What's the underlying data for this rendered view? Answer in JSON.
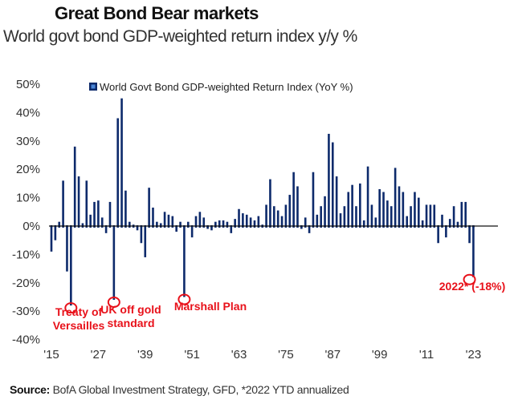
{
  "header": {
    "title": "Great Bond Bear markets",
    "subtitle": "World govt bond GDP-weighted return index y/y %"
  },
  "footer": {
    "source_label": "Source:",
    "source_text": "BofA Global Investment Strategy, GFD, *2022 YTD annualized"
  },
  "colors": {
    "bar": "#0d2a6b",
    "annotation": "#e8111a",
    "legend_inner": "#4a86d8"
  },
  "chart_data": {
    "type": "bar",
    "title": "Great Bond Bear markets",
    "subtitle": "World govt bond GDP-weighted return index y/y %",
    "xlabel": "",
    "ylabel": "",
    "ylim": [
      -40,
      50
    ],
    "yticks": [
      50,
      40,
      30,
      20,
      10,
      0,
      -10,
      -20,
      -30,
      -40
    ],
    "ytick_labels": [
      "50%",
      "40%",
      "30%",
      "20%",
      "10%",
      "0%",
      "-10%",
      "-20%",
      "-30%",
      "-40%"
    ],
    "xtick_years": [
      1915,
      1927,
      1939,
      1951,
      1963,
      1975,
      1987,
      1999,
      2011,
      2023
    ],
    "xtick_labels": [
      "'15",
      "'27",
      "'39",
      "'51",
      "'63",
      "'75",
      "'87",
      "'99",
      "'11",
      "'23"
    ],
    "grid": false,
    "legend": {
      "position": "top",
      "entries": [
        "World Govt Bond GDP-weighted Return Index (YoY %)"
      ]
    },
    "series": [
      {
        "name": "World Govt Bond GDP-weighted Return Index (YoY %)",
        "start_year": 1915,
        "values": [
          -9,
          -5,
          1.5,
          16,
          -16,
          -28,
          28,
          17.5,
          1,
          16,
          4,
          8.5,
          9,
          3,
          -2.5,
          8.5,
          -26,
          38,
          45,
          12.5,
          1.5,
          0.5,
          -1.5,
          -6,
          -11,
          13.5,
          6.5,
          1.5,
          1,
          5,
          4,
          3.5,
          -2,
          1.5,
          -25,
          1.5,
          -4,
          3.5,
          5,
          3,
          -1,
          -1.5,
          1.5,
          2,
          2,
          1.5,
          -2.5,
          2.5,
          6,
          4.5,
          4,
          3,
          2,
          3.5,
          0.5,
          7.5,
          16.5,
          7,
          5.5,
          3.5,
          7.5,
          11,
          19,
          14,
          -1,
          3,
          -2.5,
          19,
          4,
          7,
          10.5,
          32.5,
          29.5,
          17.5,
          4.5,
          7,
          12,
          14.5,
          7,
          15,
          2,
          21,
          7.5,
          3,
          13,
          12,
          9,
          7,
          20.5,
          14,
          12,
          3.5,
          7,
          12,
          10,
          2,
          7.5,
          7.5,
          7.5,
          -6,
          4,
          -4,
          2.5,
          7,
          1.5,
          8.5,
          8.5,
          -6,
          -18
        ],
        "note": "Values estimated visually from the chart; series runs 1915 through 2022*"
      }
    ],
    "annotations": [
      {
        "year": 1920,
        "value": -28,
        "text": [
          "Treaty of",
          "Versailles"
        ]
      },
      {
        "year": 1931,
        "value": -26,
        "text": [
          "UK off gold",
          "standard"
        ]
      },
      {
        "year": 1949,
        "value": -25,
        "text": [
          "Marshall Plan"
        ]
      },
      {
        "year": 2022,
        "value": -18,
        "text": [
          "2022* (-18%)"
        ]
      }
    ]
  }
}
